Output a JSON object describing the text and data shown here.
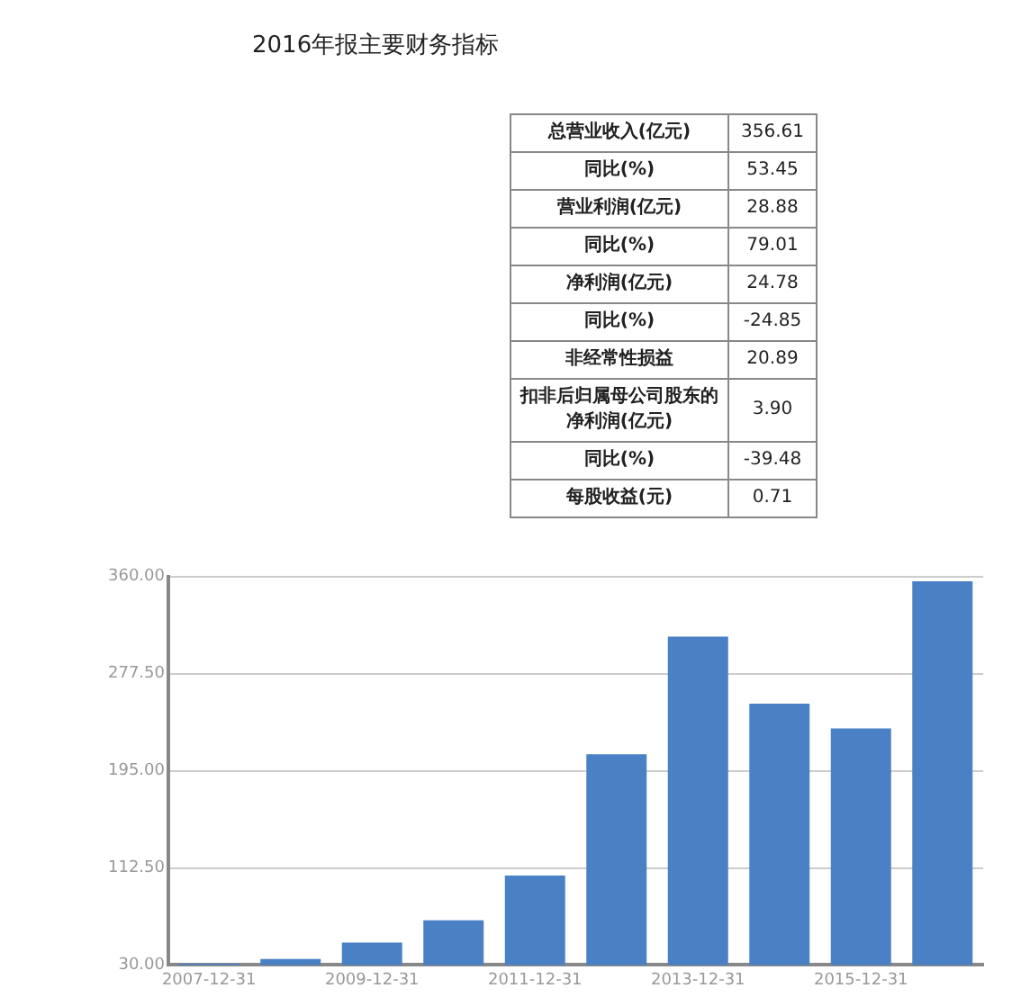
{
  "chart_data": [
    {
      "type": "other",
      "title": "2016年报主要财务指标",
      "annotations": [
        "总营业收入(亿元)",
        "356.61",
        "同比(%)",
        "53.45",
        "营业利润(亿元)",
        "28.88",
        "同比(%)",
        "79.01",
        "净利润(亿元)",
        "24.78",
        "同比(%)",
        "-24.85",
        "非经常性损益",
        "20.89",
        "扣非后归属母公司股东的净利润(亿元)",
        "3.90",
        "同比(%)",
        "-39.48",
        "每股收益(元)",
        "0.71"
      ]
    },
    {
      "type": "bar",
      "categories": [
        "2007-12-31",
        null,
        "2009-12-31",
        null,
        "2011-12-31",
        null,
        "2013-12-31",
        null,
        "2015-12-31",
        null
      ],
      "values": [
        31,
        35,
        49,
        68,
        106,
        209,
        309,
        252,
        231,
        356
      ],
      "color": "#4a80c4",
      "ylim": [
        30,
        360
      ],
      "yticks": [
        {
          "value": 30,
          "label": "30.00"
        },
        {
          "value": 112.5,
          "label": "112.50"
        },
        {
          "value": 195,
          "label": "195.00"
        },
        {
          "value": 277.5,
          "label": "277.50"
        },
        {
          "value": 360,
          "label": "360.00"
        }
      ],
      "grid": "y"
    }
  ]
}
